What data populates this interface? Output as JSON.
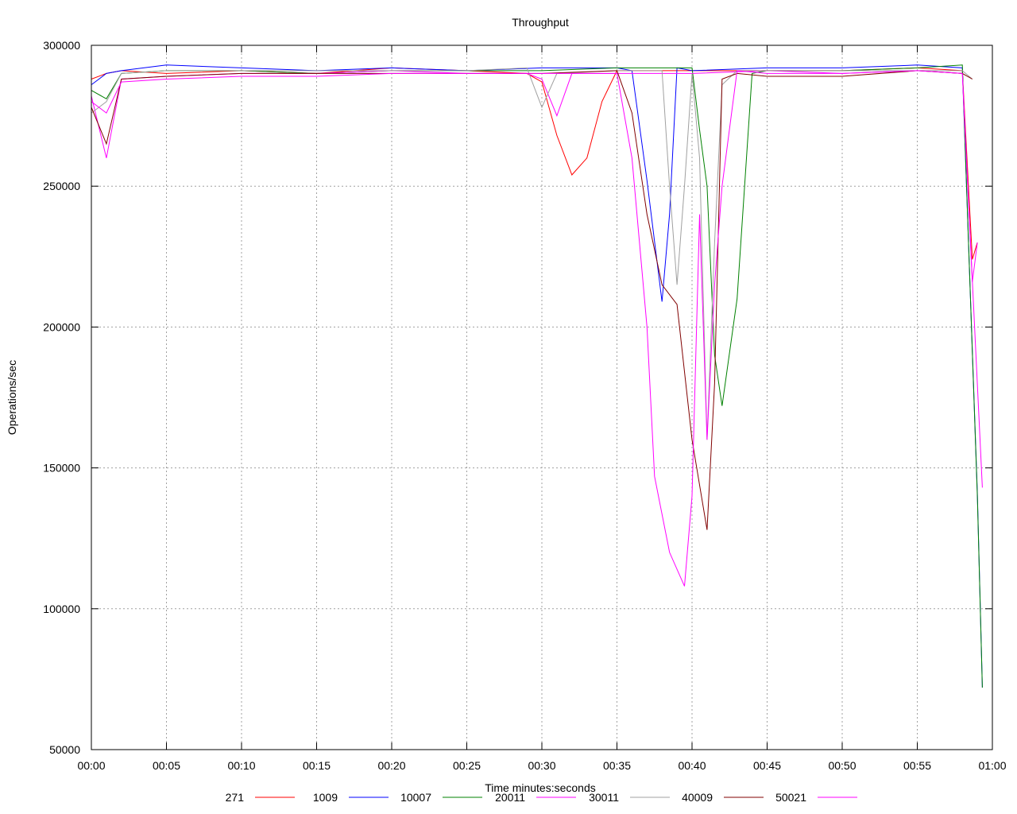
{
  "chart_data": {
    "type": "line",
    "title": "Throughput",
    "xlabel": "Time minutes:seconds",
    "ylabel": "Operations/sec",
    "xlim": [
      0,
      3600
    ],
    "ylim": [
      50000,
      300000
    ],
    "xticks": [
      {
        "v": 0,
        "label": "00:00"
      },
      {
        "v": 300,
        "label": "00:05"
      },
      {
        "v": 600,
        "label": "00:10"
      },
      {
        "v": 900,
        "label": "00:15"
      },
      {
        "v": 1200,
        "label": "00:20"
      },
      {
        "v": 1500,
        "label": "00:25"
      },
      {
        "v": 1800,
        "label": "00:30"
      },
      {
        "v": 2100,
        "label": "00:35"
      },
      {
        "v": 2400,
        "label": "00:40"
      },
      {
        "v": 2700,
        "label": "00:45"
      },
      {
        "v": 3000,
        "label": "00:50"
      },
      {
        "v": 3300,
        "label": "00:55"
      },
      {
        "v": 3600,
        "label": "01:00"
      }
    ],
    "yticks": [
      {
        "v": 50000,
        "label": "50000"
      },
      {
        "v": 100000,
        "label": "100000"
      },
      {
        "v": 150000,
        "label": "150000"
      },
      {
        "v": 200000,
        "label": "200000"
      },
      {
        "v": 250000,
        "label": "250000"
      },
      {
        "v": 300000,
        "label": "300000"
      }
    ],
    "grid": true,
    "legend_position": "bottom",
    "series": [
      {
        "name": "271",
        "color": "#ff0000",
        "points": [
          [
            0,
            288000
          ],
          [
            60,
            290000
          ],
          [
            120,
            291000
          ],
          [
            300,
            290000
          ],
          [
            600,
            291000
          ],
          [
            900,
            290000
          ],
          [
            1200,
            292000
          ],
          [
            1500,
            291000
          ],
          [
            1740,
            290000
          ],
          [
            1800,
            287000
          ],
          [
            1860,
            268000
          ],
          [
            1920,
            254000
          ],
          [
            1980,
            260000
          ],
          [
            2040,
            280000
          ],
          [
            2100,
            291000
          ],
          [
            2400,
            291000
          ],
          [
            2700,
            291000
          ],
          [
            3000,
            291000
          ],
          [
            3300,
            292000
          ],
          [
            3480,
            291000
          ],
          [
            3520,
            224000
          ],
          [
            3540,
            230000
          ]
        ]
      },
      {
        "name": "1009",
        "color": "#0000ff",
        "points": [
          [
            0,
            286000
          ],
          [
            60,
            290000
          ],
          [
            120,
            291000
          ],
          [
            300,
            293000
          ],
          [
            600,
            292000
          ],
          [
            900,
            291000
          ],
          [
            1200,
            292000
          ],
          [
            1500,
            291000
          ],
          [
            1800,
            292000
          ],
          [
            2100,
            292000
          ],
          [
            2160,
            291000
          ],
          [
            2220,
            252000
          ],
          [
            2280,
            209000
          ],
          [
            2310,
            240000
          ],
          [
            2340,
            292000
          ],
          [
            2400,
            291000
          ],
          [
            2700,
            292000
          ],
          [
            3000,
            292000
          ],
          [
            3300,
            293000
          ],
          [
            3480,
            292000
          ],
          [
            3540,
            141000
          ],
          [
            3560,
            72000
          ]
        ]
      },
      {
        "name": "10007",
        "color": "#008000",
        "points": [
          [
            0,
            284000
          ],
          [
            60,
            281000
          ],
          [
            120,
            290000
          ],
          [
            300,
            291000
          ],
          [
            600,
            291000
          ],
          [
            900,
            290000
          ],
          [
            1200,
            291000
          ],
          [
            1500,
            291000
          ],
          [
            1800,
            291000
          ],
          [
            2100,
            292000
          ],
          [
            2400,
            292000
          ],
          [
            2430,
            270000
          ],
          [
            2460,
            250000
          ],
          [
            2490,
            190000
          ],
          [
            2520,
            172000
          ],
          [
            2580,
            210000
          ],
          [
            2640,
            290000
          ],
          [
            2700,
            291000
          ],
          [
            3000,
            291000
          ],
          [
            3300,
            292000
          ],
          [
            3480,
            293000
          ],
          [
            3540,
            140000
          ],
          [
            3560,
            72000
          ]
        ]
      },
      {
        "name": "20011",
        "color": "#ff00ff",
        "points": [
          [
            0,
            282000
          ],
          [
            60,
            260000
          ],
          [
            120,
            288000
          ],
          [
            300,
            289000
          ],
          [
            600,
            290000
          ],
          [
            900,
            290000
          ],
          [
            1200,
            291000
          ],
          [
            1500,
            290000
          ],
          [
            1740,
            290000
          ],
          [
            1800,
            288000
          ],
          [
            1860,
            275000
          ],
          [
            1920,
            290000
          ],
          [
            2100,
            290000
          ],
          [
            2400,
            290000
          ],
          [
            2700,
            291000
          ],
          [
            3000,
            290000
          ],
          [
            3300,
            291000
          ],
          [
            3480,
            290000
          ],
          [
            3520,
            216000
          ],
          [
            3540,
            230000
          ]
        ]
      },
      {
        "name": "30011",
        "color": "#a0a0a0",
        "points": [
          [
            0,
            276000
          ],
          [
            60,
            280000
          ],
          [
            120,
            290000
          ],
          [
            300,
            291000
          ],
          [
            600,
            291000
          ],
          [
            900,
            291000
          ],
          [
            1200,
            291000
          ],
          [
            1500,
            291000
          ],
          [
            1740,
            292000
          ],
          [
            1800,
            278000
          ],
          [
            1860,
            290000
          ],
          [
            2100,
            291000
          ],
          [
            2280,
            291000
          ],
          [
            2310,
            250000
          ],
          [
            2340,
            215000
          ],
          [
            2370,
            250000
          ],
          [
            2400,
            290000
          ],
          [
            2430,
            260000
          ],
          [
            2460,
            160000
          ],
          [
            2490,
            230000
          ],
          [
            2520,
            286000
          ],
          [
            2580,
            291000
          ],
          [
            2700,
            291000
          ],
          [
            3000,
            291000
          ],
          [
            3300,
            291000
          ],
          [
            3480,
            291000
          ],
          [
            3520,
            288000
          ]
        ]
      },
      {
        "name": "40009",
        "color": "#800000",
        "points": [
          [
            0,
            278000
          ],
          [
            60,
            265000
          ],
          [
            120,
            288000
          ],
          [
            300,
            289000
          ],
          [
            600,
            290000
          ],
          [
            900,
            290000
          ],
          [
            1200,
            290000
          ],
          [
            1500,
            290000
          ],
          [
            1800,
            290000
          ],
          [
            2100,
            291000
          ],
          [
            2160,
            276000
          ],
          [
            2220,
            240000
          ],
          [
            2280,
            215000
          ],
          [
            2340,
            208000
          ],
          [
            2400,
            160000
          ],
          [
            2460,
            128000
          ],
          [
            2490,
            180000
          ],
          [
            2520,
            288000
          ],
          [
            2580,
            290000
          ],
          [
            2700,
            289000
          ],
          [
            3000,
            289000
          ],
          [
            3300,
            291000
          ],
          [
            3480,
            290000
          ],
          [
            3520,
            288000
          ]
        ]
      },
      {
        "name": "50021",
        "color": "#ff00ff",
        "points": [
          [
            0,
            280000
          ],
          [
            60,
            276000
          ],
          [
            120,
            287000
          ],
          [
            300,
            288000
          ],
          [
            600,
            289000
          ],
          [
            900,
            289000
          ],
          [
            1200,
            290000
          ],
          [
            1500,
            290000
          ],
          [
            1800,
            290000
          ],
          [
            2100,
            290000
          ],
          [
            2160,
            260000
          ],
          [
            2220,
            200000
          ],
          [
            2250,
            147000
          ],
          [
            2310,
            120000
          ],
          [
            2370,
            108000
          ],
          [
            2400,
            140000
          ],
          [
            2430,
            240000
          ],
          [
            2460,
            160000
          ],
          [
            2490,
            215000
          ],
          [
            2520,
            250000
          ],
          [
            2580,
            291000
          ],
          [
            2700,
            290000
          ],
          [
            3000,
            290000
          ],
          [
            3300,
            291000
          ],
          [
            3480,
            290000
          ],
          [
            3560,
            143000
          ]
        ]
      }
    ]
  }
}
